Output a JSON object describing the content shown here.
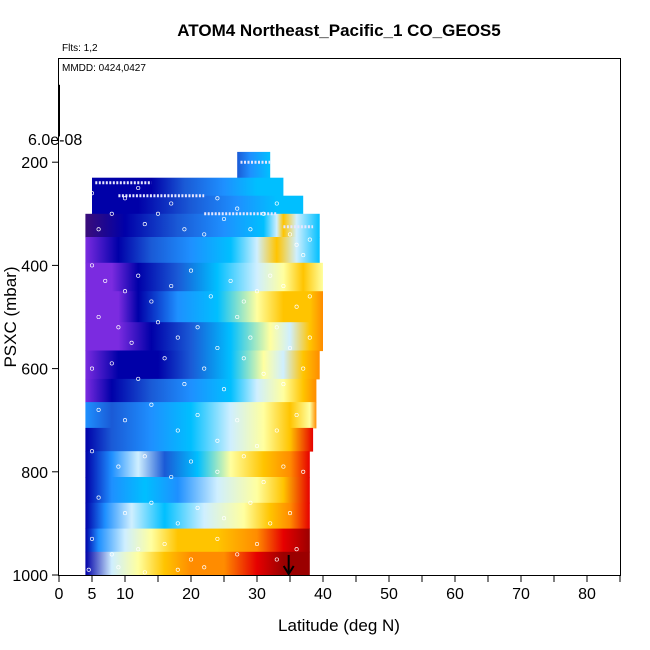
{
  "chart_data": {
    "type": "heatmap",
    "title": "ATOM4 Northeast_Pacific_1 CO_GEOS5",
    "subtitle": "Flts: 1,2",
    "annotation": "MMDD: 0424,0427",
    "xlabel": "Latitude (deg N)",
    "ylabel": "PSXC (mbar)",
    "xlim": [
      0,
      85
    ],
    "ylim": [
      1000,
      0
    ],
    "x_ticks": [
      0,
      5,
      10,
      20,
      30,
      40,
      50,
      60,
      70,
      80
    ],
    "x_minor_ticks": [
      15,
      25,
      35,
      45,
      55,
      65,
      75,
      85
    ],
    "y_ticks": [
      200,
      400,
      600,
      800,
      1000
    ],
    "scale_label": "6.0e-08",
    "scale_bar_y": [
      50,
      150
    ],
    "arrow_latitude": 34.8,
    "grid": false,
    "legend": "none",
    "colormap": [
      "#3a0d7a",
      "#7b2be0",
      "#0000a8",
      "#1a5ad6",
      "#1e90ff",
      "#00bfff",
      "#cfefff",
      "#ffffa0",
      "#ffc400",
      "#ff8c00",
      "#e60000",
      "#9b0000"
    ],
    "rows": [
      {
        "p": [
          180,
          230
        ],
        "x": [
          27,
          32
        ],
        "stops": [
          [
            27,
            3
          ],
          [
            29,
            4
          ],
          [
            32,
            5
          ]
        ]
      },
      {
        "p": [
          230,
          265
        ],
        "x": [
          5,
          34
        ],
        "stops": [
          [
            5,
            2
          ],
          [
            14,
            2
          ],
          [
            19,
            3
          ],
          [
            25,
            4
          ],
          [
            30,
            5
          ],
          [
            34,
            5
          ]
        ]
      },
      {
        "p": [
          265,
          300
        ],
        "x": [
          5,
          37
        ],
        "stops": [
          [
            5,
            2
          ],
          [
            12,
            2
          ],
          [
            20,
            3
          ],
          [
            27,
            4
          ],
          [
            33,
            5
          ],
          [
            37,
            5
          ]
        ]
      },
      {
        "p": [
          300,
          345
        ],
        "x": [
          4,
          39.5
        ],
        "stops": [
          [
            4,
            0
          ],
          [
            10,
            2
          ],
          [
            18,
            3
          ],
          [
            25,
            4
          ],
          [
            31,
            5
          ],
          [
            33,
            6
          ],
          [
            34,
            8
          ],
          [
            36,
            6
          ],
          [
            39.5,
            5
          ]
        ]
      },
      {
        "p": [
          345,
          395
        ],
        "x": [
          4,
          39.5
        ],
        "stops": [
          [
            4,
            1
          ],
          [
            9,
            2
          ],
          [
            14,
            3
          ],
          [
            20,
            4
          ],
          [
            26,
            5
          ],
          [
            30,
            6
          ],
          [
            33,
            8
          ],
          [
            36,
            6
          ],
          [
            39.5,
            5
          ]
        ]
      },
      {
        "p": [
          395,
          450
        ],
        "x": [
          4,
          40
        ],
        "stops": [
          [
            4,
            1
          ],
          [
            8,
            1
          ],
          [
            12,
            2
          ],
          [
            18,
            3
          ],
          [
            24,
            5
          ],
          [
            30,
            6
          ],
          [
            34,
            7
          ],
          [
            37,
            8
          ],
          [
            40,
            7
          ]
        ]
      },
      {
        "p": [
          450,
          510
        ],
        "x": [
          4,
          40
        ],
        "stops": [
          [
            4,
            1
          ],
          [
            9,
            1
          ],
          [
            12,
            2
          ],
          [
            18,
            4
          ],
          [
            24,
            5
          ],
          [
            30,
            7
          ],
          [
            34,
            8
          ],
          [
            38,
            8
          ],
          [
            40,
            9
          ]
        ]
      },
      {
        "p": [
          510,
          565
        ],
        "x": [
          4,
          40
        ],
        "stops": [
          [
            4,
            1
          ],
          [
            9,
            1
          ],
          [
            14,
            2
          ],
          [
            20,
            3
          ],
          [
            26,
            5
          ],
          [
            32,
            7
          ],
          [
            35,
            6
          ],
          [
            38,
            8
          ],
          [
            40,
            9
          ]
        ]
      },
      {
        "p": [
          565,
          620
        ],
        "x": [
          4,
          39.5
        ],
        "stops": [
          [
            4,
            1
          ],
          [
            9,
            2
          ],
          [
            15,
            2
          ],
          [
            20,
            3
          ],
          [
            26,
            5
          ],
          [
            31,
            7
          ],
          [
            34,
            6
          ],
          [
            37,
            8
          ],
          [
            39.5,
            9
          ]
        ]
      },
      {
        "p": [
          620,
          665
        ],
        "x": [
          4,
          39
        ],
        "stops": [
          [
            4,
            1
          ],
          [
            8,
            2
          ],
          [
            14,
            3
          ],
          [
            20,
            4
          ],
          [
            26,
            5
          ],
          [
            30,
            6
          ],
          [
            34,
            7
          ],
          [
            37,
            8
          ],
          [
            39,
            9
          ]
        ]
      },
      {
        "p": [
          665,
          715
        ],
        "x": [
          4,
          39
        ],
        "stops": [
          [
            4,
            4
          ],
          [
            8,
            3
          ],
          [
            14,
            4
          ],
          [
            20,
            5
          ],
          [
            26,
            6
          ],
          [
            31,
            7
          ],
          [
            35,
            8
          ],
          [
            38,
            7
          ],
          [
            39,
            9
          ]
        ]
      },
      {
        "p": [
          715,
          760
        ],
        "x": [
          4,
          38.5
        ],
        "stops": [
          [
            4,
            2
          ],
          [
            8,
            3
          ],
          [
            14,
            4
          ],
          [
            20,
            5
          ],
          [
            26,
            6
          ],
          [
            31,
            7
          ],
          [
            35,
            8
          ],
          [
            38.5,
            10
          ]
        ]
      },
      {
        "p": [
          760,
          810
        ],
        "x": [
          4,
          38
        ],
        "stops": [
          [
            4,
            2
          ],
          [
            8,
            4
          ],
          [
            12,
            6
          ],
          [
            16,
            3
          ],
          [
            21,
            5
          ],
          [
            26,
            7
          ],
          [
            31,
            8
          ],
          [
            35,
            9
          ],
          [
            38,
            10
          ]
        ]
      },
      {
        "p": [
          810,
          860
        ],
        "x": [
          4,
          38
        ],
        "stops": [
          [
            4,
            2
          ],
          [
            8,
            4
          ],
          [
            13,
            5
          ],
          [
            18,
            4
          ],
          [
            24,
            6
          ],
          [
            30,
            7
          ],
          [
            34,
            8
          ],
          [
            38,
            10
          ]
        ]
      },
      {
        "p": [
          860,
          910
        ],
        "x": [
          4,
          38
        ],
        "stops": [
          [
            4,
            2
          ],
          [
            7,
            4
          ],
          [
            11,
            6
          ],
          [
            16,
            5
          ],
          [
            22,
            6
          ],
          [
            28,
            7
          ],
          [
            32,
            8
          ],
          [
            35,
            9
          ],
          [
            38,
            10
          ]
        ]
      },
      {
        "p": [
          910,
          955
        ],
        "x": [
          4,
          38
        ],
        "stops": [
          [
            4,
            2
          ],
          [
            6,
            4
          ],
          [
            10,
            6
          ],
          [
            14,
            7
          ],
          [
            18,
            8
          ],
          [
            24,
            8
          ],
          [
            30,
            9
          ],
          [
            34,
            10
          ],
          [
            38,
            11
          ]
        ]
      },
      {
        "p": [
          955,
          1000
        ],
        "x": [
          4,
          38
        ],
        "stops": [
          [
            4,
            2
          ],
          [
            8,
            6
          ],
          [
            12,
            7
          ],
          [
            16,
            8
          ],
          [
            20,
            9
          ],
          [
            25,
            9
          ],
          [
            30,
            10
          ],
          [
            34,
            11
          ],
          [
            38,
            11
          ]
        ]
      }
    ],
    "flight_tracks": [
      {
        "p": 200,
        "x": [
          27.5,
          32
        ]
      },
      {
        "p": 240,
        "x": [
          5.5,
          14
        ]
      },
      {
        "p": 265,
        "x": [
          9,
          22
        ]
      },
      {
        "p": 300,
        "x": [
          22,
          33
        ]
      },
      {
        "p": 325,
        "x": [
          34,
          38.5
        ]
      }
    ],
    "sample_points": [
      [
        5,
        260
      ],
      [
        8,
        300
      ],
      [
        6,
        330
      ],
      [
        10,
        270
      ],
      [
        12,
        250
      ],
      [
        13,
        320
      ],
      [
        15,
        300
      ],
      [
        17,
        280
      ],
      [
        19,
        330
      ],
      [
        22,
        340
      ],
      [
        24,
        270
      ],
      [
        25,
        310
      ],
      [
        27,
        290
      ],
      [
        29,
        330
      ],
      [
        31,
        300
      ],
      [
        33,
        280
      ],
      [
        35,
        340
      ],
      [
        36,
        360
      ],
      [
        38,
        350
      ],
      [
        37,
        380
      ],
      [
        5,
        400
      ],
      [
        7,
        430
      ],
      [
        10,
        450
      ],
      [
        12,
        420
      ],
      [
        14,
        470
      ],
      [
        17,
        440
      ],
      [
        20,
        410
      ],
      [
        23,
        460
      ],
      [
        26,
        430
      ],
      [
        28,
        470
      ],
      [
        30,
        450
      ],
      [
        32,
        420
      ],
      [
        34,
        440
      ],
      [
        36,
        480
      ],
      [
        38,
        460
      ],
      [
        6,
        500
      ],
      [
        9,
        520
      ],
      [
        11,
        550
      ],
      [
        15,
        510
      ],
      [
        18,
        540
      ],
      [
        21,
        520
      ],
      [
        24,
        560
      ],
      [
        27,
        500
      ],
      [
        29,
        540
      ],
      [
        33,
        520
      ],
      [
        35,
        560
      ],
      [
        38,
        540
      ],
      [
        5,
        600
      ],
      [
        8,
        590
      ],
      [
        12,
        620
      ],
      [
        16,
        580
      ],
      [
        19,
        630
      ],
      [
        22,
        600
      ],
      [
        25,
        640
      ],
      [
        28,
        580
      ],
      [
        31,
        610
      ],
      [
        34,
        630
      ],
      [
        37,
        600
      ],
      [
        6,
        680
      ],
      [
        10,
        700
      ],
      [
        14,
        670
      ],
      [
        18,
        720
      ],
      [
        21,
        690
      ],
      [
        24,
        740
      ],
      [
        27,
        700
      ],
      [
        30,
        750
      ],
      [
        33,
        720
      ],
      [
        36,
        690
      ],
      [
        5,
        760
      ],
      [
        9,
        790
      ],
      [
        13,
        770
      ],
      [
        17,
        810
      ],
      [
        20,
        780
      ],
      [
        24,
        800
      ],
      [
        28,
        770
      ],
      [
        31,
        820
      ],
      [
        34,
        790
      ],
      [
        37,
        800
      ],
      [
        6,
        850
      ],
      [
        10,
        880
      ],
      [
        14,
        860
      ],
      [
        18,
        900
      ],
      [
        21,
        870
      ],
      [
        25,
        890
      ],
      [
        29,
        860
      ],
      [
        32,
        900
      ],
      [
        35,
        880
      ],
      [
        5,
        930
      ],
      [
        8,
        960
      ],
      [
        12,
        950
      ],
      [
        16,
        940
      ],
      [
        20,
        970
      ],
      [
        24,
        930
      ],
      [
        27,
        960
      ],
      [
        30,
        940
      ],
      [
        33,
        970
      ],
      [
        36,
        950
      ],
      [
        4.5,
        990
      ],
      [
        9,
        985
      ],
      [
        13,
        995
      ],
      [
        18,
        990
      ],
      [
        22,
        985
      ]
    ]
  }
}
